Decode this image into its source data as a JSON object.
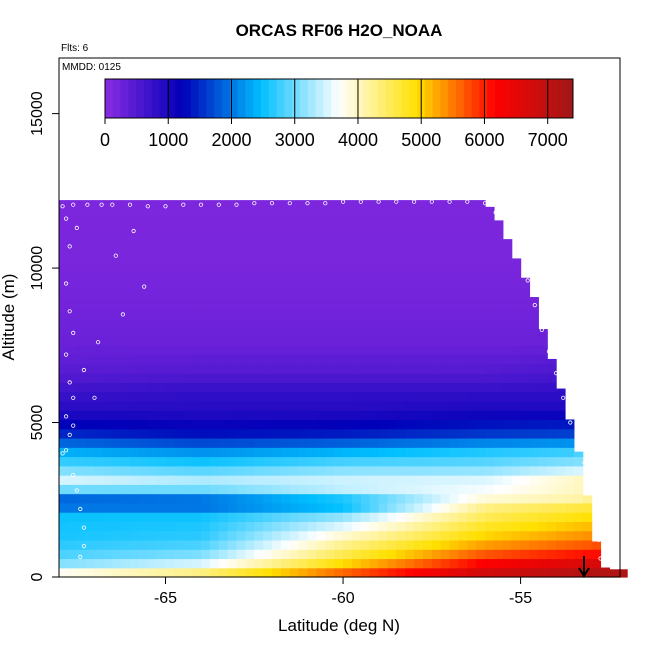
{
  "chart_data": {
    "type": "heatmap",
    "title": "ORCAS RF06 H2O_NOAA",
    "annotations": {
      "flights": "Flts: 6",
      "date": "MMDD: 0125"
    },
    "xlabel": "Latitude (deg N)",
    "ylabel": "Altitude (m)",
    "xlim": [
      -68.0,
      -52.2
    ],
    "ylim": [
      0,
      16800
    ],
    "x_ticks": [
      -65,
      -60,
      -55
    ],
    "x_tick_labels": [
      "-65",
      "-60",
      "-55"
    ],
    "y_ticks": [
      0,
      5000,
      10000,
      15000
    ],
    "y_tick_labels": [
      "0",
      "5000",
      "10000",
      "15000"
    ],
    "colorbar": {
      "min": 0,
      "max": 7400,
      "ticks": [
        0,
        1000,
        2000,
        3000,
        4000,
        5000,
        6000,
        7000
      ],
      "tick_labels": [
        "0",
        "1000",
        "2000",
        "3000",
        "4000",
        "5000",
        "6000",
        "7000"
      ],
      "stops": [
        "#8a2be2",
        "#0000b8",
        "#00bfff",
        "#ffffff",
        "#ffe000",
        "#ff0000",
        "#a01818"
      ]
    },
    "grid": {
      "lat_start": -68.0,
      "lat_step": 0.25,
      "alt_step": 300,
      "top_altitude_profile": [
        [
          -68.0,
          12200
        ],
        [
          -56.0,
          12200
        ],
        [
          -55.6,
          11500
        ],
        [
          -55.2,
          10500
        ],
        [
          -54.6,
          9000
        ],
        [
          -54.3,
          7700
        ],
        [
          -54.0,
          6600
        ],
        [
          -53.7,
          5400
        ],
        [
          -53.4,
          4200
        ],
        [
          -53.1,
          2500
        ],
        [
          -52.8,
          700
        ],
        [
          -52.6,
          250
        ]
      ],
      "cross_sections": [
        {
          "lat": -68,
          "profile": [
            [
              0,
              4200
            ],
            [
              300,
              3300
            ],
            [
              600,
              2900
            ],
            [
              1200,
              2600
            ],
            [
              2100,
              2500
            ],
            [
              2400,
              1500
            ],
            [
              2700,
              2300
            ],
            [
              3000,
              3700
            ],
            [
              3600,
              2900
            ],
            [
              4200,
              2200
            ],
            [
              4500,
              1600
            ],
            [
              5400,
              900
            ],
            [
              6000,
              700
            ],
            [
              6600,
              450
            ],
            [
              7500,
              300
            ],
            [
              9000,
              200
            ],
            [
              10500,
              150
            ],
            [
              12300,
              120
            ]
          ]
        },
        {
          "lat": -64,
          "profile": [
            [
              0,
              4800
            ],
            [
              300,
              3800
            ],
            [
              600,
              3200
            ],
            [
              1200,
              2700
            ],
            [
              2100,
              2500
            ],
            [
              2400,
              1500
            ],
            [
              2700,
              2500
            ],
            [
              3000,
              3500
            ],
            [
              3600,
              2700
            ],
            [
              4200,
              2000
            ],
            [
              4500,
              1400
            ],
            [
              5400,
              900
            ],
            [
              6000,
              800
            ],
            [
              6600,
              500
            ],
            [
              7500,
              300
            ],
            [
              9000,
              200
            ],
            [
              10500,
              150
            ],
            [
              12300,
              120
            ]
          ]
        },
        {
          "lat": -60,
          "profile": [
            [
              0,
              6000
            ],
            [
              300,
              5200
            ],
            [
              600,
              4700
            ],
            [
              1200,
              4100
            ],
            [
              2100,
              3000
            ],
            [
              2400,
              2000
            ],
            [
              2700,
              3200
            ],
            [
              3000,
              3600
            ],
            [
              3600,
              3000
            ],
            [
              4200,
              2200
            ],
            [
              4500,
              1500
            ],
            [
              5400,
              900
            ],
            [
              6000,
              800
            ],
            [
              6600,
              500
            ],
            [
              7500,
              300
            ],
            [
              9000,
              200
            ],
            [
              10500,
              150
            ],
            [
              12300,
              120
            ]
          ]
        },
        {
          "lat": -56,
          "profile": [
            [
              0,
              7000
            ],
            [
              300,
              6500
            ],
            [
              600,
              5900
            ],
            [
              1200,
              5100
            ],
            [
              2100,
              4400
            ],
            [
              2400,
              4200
            ],
            [
              2700,
              3600
            ],
            [
              3000,
              3700
            ],
            [
              3600,
              3000
            ],
            [
              4200,
              2500
            ],
            [
              4500,
              1700
            ],
            [
              5400,
              1000
            ],
            [
              6000,
              800
            ],
            [
              6600,
              500
            ],
            [
              7500,
              300
            ],
            [
              9000,
              200
            ],
            [
              10500,
              150
            ],
            [
              12300,
              120
            ]
          ]
        },
        {
          "lat": -53,
          "profile": [
            [
              0,
              7300
            ],
            [
              300,
              7000
            ],
            [
              600,
              6300
            ],
            [
              1200,
              5500
            ],
            [
              2100,
              4800
            ],
            [
              2400,
              4500
            ],
            [
              2700,
              3800
            ],
            [
              3000,
              4300
            ],
            [
              3600,
              3300
            ],
            [
              4200,
              2600
            ],
            [
              4500,
              1800
            ],
            [
              5400,
              1000
            ],
            [
              6000,
              800
            ],
            [
              6600,
              600
            ],
            [
              7500,
              300
            ],
            [
              9000,
              200
            ],
            [
              10500,
              150
            ],
            [
              12300,
              120
            ]
          ]
        }
      ]
    },
    "flight_track": [
      [
        -67.9,
        12000
      ],
      [
        -67.6,
        12050
      ],
      [
        -67.2,
        12050
      ],
      [
        -66.8,
        12050
      ],
      [
        -66.5,
        12050
      ],
      [
        -66.0,
        12050
      ],
      [
        -65.5,
        12000
      ],
      [
        -65.0,
        12000
      ],
      [
        -64.5,
        12050
      ],
      [
        -64.0,
        12050
      ],
      [
        -63.5,
        12050
      ],
      [
        -63.0,
        12050
      ],
      [
        -62.5,
        12100
      ],
      [
        -62.0,
        12100
      ],
      [
        -61.5,
        12100
      ],
      [
        -61.0,
        12100
      ],
      [
        -60.5,
        12100
      ],
      [
        -60.0,
        12150
      ],
      [
        -59.5,
        12150
      ],
      [
        -59.0,
        12150
      ],
      [
        -58.5,
        12150
      ],
      [
        -58.0,
        12150
      ],
      [
        -57.5,
        12150
      ],
      [
        -57.0,
        12150
      ],
      [
        -56.5,
        12150
      ],
      [
        -56.0,
        12100
      ],
      [
        -55.7,
        11800
      ],
      [
        -55.4,
        11200
      ],
      [
        -55.1,
        10400
      ],
      [
        -54.8,
        9600
      ],
      [
        -54.6,
        8800
      ],
      [
        -54.4,
        8000
      ],
      [
        -54.2,
        7300
      ],
      [
        -54.0,
        6600
      ],
      [
        -53.8,
        5800
      ],
      [
        -53.6,
        5000
      ],
      [
        -53.4,
        4300
      ],
      [
        -53.2,
        3700
      ],
      [
        -53.0,
        3000
      ],
      [
        -52.9,
        2200
      ],
      [
        -52.8,
        1200
      ],
      [
        -52.75,
        600
      ],
      [
        -67.8,
        11600
      ],
      [
        -67.5,
        11300
      ],
      [
        -67.7,
        10700
      ],
      [
        -67.8,
        9500
      ],
      [
        -67.7,
        8600
      ],
      [
        -67.6,
        7900
      ],
      [
        -67.8,
        7200
      ],
      [
        -67.7,
        6300
      ],
      [
        -67.6,
        5800
      ],
      [
        -67.8,
        5200
      ],
      [
        -67.7,
        4600
      ],
      [
        -67.8,
        4100
      ],
      [
        -67.6,
        3300
      ],
      [
        -67.5,
        2800
      ],
      [
        -67.4,
        2200
      ],
      [
        -67.3,
        1600
      ],
      [
        -67.3,
        1000
      ],
      [
        -67.4,
        650
      ],
      [
        -65.9,
        11200
      ],
      [
        -66.4,
        10400
      ],
      [
        -65.6,
        9400
      ],
      [
        -66.2,
        8500
      ],
      [
        -66.9,
        7600
      ],
      [
        -67.3,
        6700
      ],
      [
        -67.0,
        5800
      ],
      [
        -67.6,
        4900
      ],
      [
        -67.9,
        4000
      ]
    ]
  }
}
